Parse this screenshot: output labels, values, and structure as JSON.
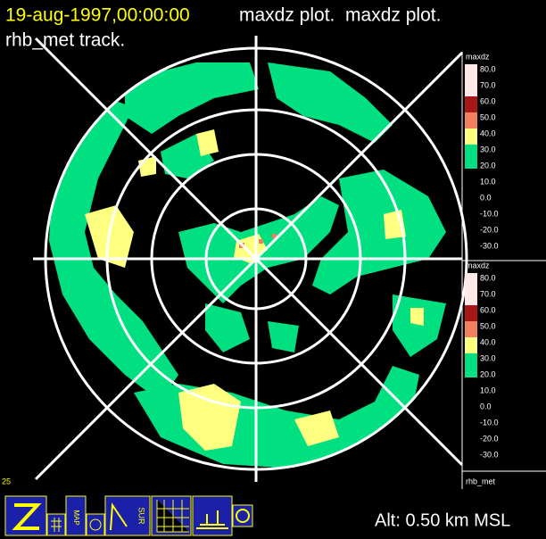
{
  "header": {
    "timestamp": "19-aug-1997,00:00:00",
    "title": "maxdz plot.  maxdz plot.",
    "track": "rhb_met track."
  },
  "legends": [
    {
      "title": "maxdz",
      "labels": [
        "80.0",
        "70.0",
        "60.0",
        "50.0",
        "40.0",
        "30.0",
        "20.0",
        "10.0",
        "0.0",
        "-10.0",
        "-20.0",
        "-30.0"
      ]
    },
    {
      "title": "maxdz",
      "labels": [
        "80.0",
        "70.0",
        "60.0",
        "50.0",
        "40.0",
        "30.0",
        "20.0",
        "10.0",
        "0.0",
        "-10.0",
        "-20.0",
        "-30.0"
      ]
    }
  ],
  "side_label": "rhb_met",
  "corner_label": "25",
  "altitude": "Alt: 0.50 km MSL",
  "toolbar": {
    "map": "MAP",
    "sur": "SUR"
  }
}
